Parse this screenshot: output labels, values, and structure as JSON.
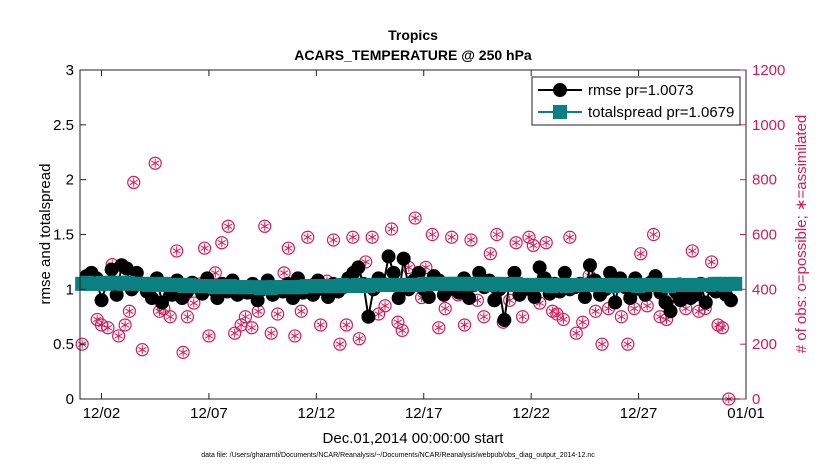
{
  "chart_data": {
    "type": "line",
    "title": "Tropics",
    "subtitle": "ACARS_TEMPERATURE @ 250 hPa",
    "xlabel": "Dec.01,2014 00:00:00 start",
    "ylabel": "rmse and totalspread",
    "y2label": "# of obs: o=possible; ∗=assimilated",
    "x_tick_labels": [
      "12/02",
      "12/07",
      "12/12",
      "12/17",
      "12/22",
      "12/27",
      "01/01"
    ],
    "x_tick_days": [
      1,
      6,
      11,
      16,
      21,
      26,
      31
    ],
    "xlim": [
      0,
      31
    ],
    "ylim": [
      0,
      3
    ],
    "y_ticks": [
      "0",
      "0.5",
      "1",
      "1.5",
      "2",
      "2.5",
      "3"
    ],
    "y2lim": [
      0,
      1200
    ],
    "y2_ticks": [
      "0",
      "200",
      "400",
      "600",
      "800",
      "1000",
      "1200"
    ],
    "colors": {
      "rmse": "#000000",
      "totalspread": "#0a8080",
      "obs": "#d6185a"
    },
    "legend": [
      {
        "name": "rmse pr=1.0073"
      },
      {
        "name": "totalspread pr=1.0679"
      }
    ],
    "series": [
      {
        "name": "rmse",
        "values": [
          1.12,
          1.15,
          1.1,
          0.9,
          1.05,
          1.18,
          0.95,
          1.22,
          1.19,
          1.0,
          1.15,
          1.05,
          0.98,
          0.92,
          1.1,
          0.88,
          1.05,
          0.95,
          1.08,
          0.92,
          0.98,
          1.06,
          1.02,
          0.96,
          1.1,
          1.0,
          0.92,
          1.05,
          0.98,
          1.08,
          0.95,
          1.02,
          0.97,
          1.05,
          0.9,
          1.0,
          1.08,
          0.95,
          1.02,
          0.98,
          1.05,
          0.92,
          1.1,
          0.97,
          1.03,
          0.95,
          1.08,
          1.0,
          0.93,
          1.05,
          0.98,
          1.02,
          1.1,
          1.15,
          1.2,
          1.05,
          0.75,
          1.0,
          1.1,
          1.05,
          1.3,
          1.15,
          0.92,
          1.28,
          1.0,
          1.08,
          1.15,
          1.0,
          0.93,
          1.12,
          1.08,
          0.95,
          1.0,
          1.05,
          0.97,
          1.1,
          0.92,
          1.04,
          1.15,
          1.02,
          1.08,
          0.9,
          1.0,
          0.72,
          1.05,
          1.15,
          0.95,
          1.0,
          1.02,
          0.93,
          1.2,
          1.1,
          0.96,
          1.05,
          0.98,
          1.15,
          1.0,
          1.02,
          1.05,
          0.93,
          1.22,
          1.08,
          0.95,
          1.0,
          1.15,
          0.88,
          1.1,
          1.02,
          0.92,
          1.1,
          1.0,
          0.95,
          1.06,
          1.12,
          0.97,
          0.88,
          0.8,
          0.98,
          0.9,
          1.0,
          0.92,
          0.95,
          1.05,
          0.88,
          1.02,
          0.98,
          1.05,
          0.95,
          0.9
        ]
      },
      {
        "name": "totalspread",
        "values": [
          1.05,
          1.06,
          1.05,
          1.05,
          1.06,
          1.05,
          1.06,
          1.06,
          1.05,
          1.06,
          1.05,
          1.05,
          1.05,
          1.04,
          1.05,
          1.04,
          1.05,
          1.04,
          1.04,
          1.04,
          1.03,
          1.04,
          1.03,
          1.03,
          1.03,
          1.03,
          1.02,
          1.03,
          1.02,
          1.03,
          1.02,
          1.02,
          1.02,
          1.02,
          1.02,
          1.01,
          1.02,
          1.01,
          1.02,
          1.02,
          1.02,
          1.02,
          1.02,
          1.02,
          1.03,
          1.03,
          1.03,
          1.03,
          1.03,
          1.03,
          1.03,
          1.04,
          1.03,
          1.03,
          1.04,
          1.03,
          1.03,
          1.04,
          1.04,
          1.04,
          1.04,
          1.04,
          1.04,
          1.04,
          1.04,
          1.04,
          1.04,
          1.05,
          1.05,
          1.05,
          1.05,
          1.05,
          1.05,
          1.05,
          1.05,
          1.05,
          1.05,
          1.05,
          1.05,
          1.05,
          1.04,
          1.05,
          1.05,
          1.04,
          1.04,
          1.05,
          1.04,
          1.04,
          1.04,
          1.04,
          1.04,
          1.04,
          1.03,
          1.04,
          1.04,
          1.03,
          1.04,
          1.04,
          1.04,
          1.04,
          1.04,
          1.04,
          1.04,
          1.04,
          1.03,
          1.04,
          1.04,
          1.04,
          1.04,
          1.03,
          1.04,
          1.04,
          1.04,
          1.04,
          1.04,
          1.03,
          1.04,
          1.04,
          1.04,
          1.04,
          1.04,
          1.04,
          1.04,
          1.04,
          1.05,
          1.05,
          1.04,
          1.05,
          1.05
        ]
      },
      {
        "name": "obs_possible",
        "points": [
          [
            0.1,
            200
          ],
          [
            0.5,
            460
          ],
          [
            0.8,
            290
          ],
          [
            1.0,
            270
          ],
          [
            1.3,
            260
          ],
          [
            1.5,
            490
          ],
          [
            1.8,
            230
          ],
          [
            2.1,
            270
          ],
          [
            2.3,
            320
          ],
          [
            2.5,
            790
          ],
          [
            2.7,
            420
          ],
          [
            2.9,
            180
          ],
          [
            3.2,
            400
          ],
          [
            3.5,
            860
          ],
          [
            3.7,
            320
          ],
          [
            3.9,
            330
          ],
          [
            4.2,
            300
          ],
          [
            4.5,
            540
          ],
          [
            4.8,
            170
          ],
          [
            5.0,
            300
          ],
          [
            5.3,
            350
          ],
          [
            5.6,
            420
          ],
          [
            5.8,
            550
          ],
          [
            6.0,
            230
          ],
          [
            6.3,
            460
          ],
          [
            6.6,
            570
          ],
          [
            6.9,
            630
          ],
          [
            7.2,
            240
          ],
          [
            7.5,
            270
          ],
          [
            7.7,
            300
          ],
          [
            8.0,
            260
          ],
          [
            8.3,
            320
          ],
          [
            8.6,
            630
          ],
          [
            8.9,
            240
          ],
          [
            9.2,
            310
          ],
          [
            9.5,
            460
          ],
          [
            9.7,
            550
          ],
          [
            10.0,
            230
          ],
          [
            10.3,
            320
          ],
          [
            10.6,
            590
          ],
          [
            10.9,
            420
          ],
          [
            11.2,
            270
          ],
          [
            11.5,
            430
          ],
          [
            11.8,
            580
          ],
          [
            12.1,
            200
          ],
          [
            12.4,
            270
          ],
          [
            12.7,
            590
          ],
          [
            13.0,
            220
          ],
          [
            13.3,
            500
          ],
          [
            13.6,
            590
          ],
          [
            13.9,
            310
          ],
          [
            14.2,
            340
          ],
          [
            14.5,
            620
          ],
          [
            14.8,
            280
          ],
          [
            15.0,
            250
          ],
          [
            15.3,
            480
          ],
          [
            15.6,
            660
          ],
          [
            15.9,
            370
          ],
          [
            16.1,
            480
          ],
          [
            16.4,
            600
          ],
          [
            16.7,
            260
          ],
          [
            17.0,
            330
          ],
          [
            17.3,
            590
          ],
          [
            17.6,
            380
          ],
          [
            17.9,
            270
          ],
          [
            18.2,
            580
          ],
          [
            18.5,
            360
          ],
          [
            18.8,
            300
          ],
          [
            19.1,
            530
          ],
          [
            19.4,
            600
          ],
          [
            19.7,
            280
          ],
          [
            20.0,
            360
          ],
          [
            20.3,
            570
          ],
          [
            20.6,
            300
          ],
          [
            20.9,
            590
          ],
          [
            21.1,
            560
          ],
          [
            21.4,
            350
          ],
          [
            21.7,
            570
          ],
          [
            22.0,
            320
          ],
          [
            22.2,
            310
          ],
          [
            22.5,
            290
          ],
          [
            22.8,
            590
          ],
          [
            23.1,
            240
          ],
          [
            23.4,
            280
          ],
          [
            23.7,
            450
          ],
          [
            24.0,
            320
          ],
          [
            24.3,
            200
          ],
          [
            24.6,
            330
          ],
          [
            24.9,
            440
          ],
          [
            25.2,
            300
          ],
          [
            25.5,
            200
          ],
          [
            25.8,
            330
          ],
          [
            26.1,
            530
          ],
          [
            26.4,
            340
          ],
          [
            26.7,
            600
          ],
          [
            27.0,
            300
          ],
          [
            27.3,
            290
          ],
          [
            27.6,
            390
          ],
          [
            27.9,
            420
          ],
          [
            28.2,
            330
          ],
          [
            28.5,
            540
          ],
          [
            28.8,
            320
          ],
          [
            29.1,
            330
          ],
          [
            29.4,
            500
          ],
          [
            29.7,
            270
          ],
          [
            29.9,
            260
          ],
          [
            30.2,
            0
          ]
        ]
      }
    ]
  },
  "footer": "data file: /Users/gharamti/Documents/NCAR/Reanalysis/~/Documents/NCAR/Reanalysis/webpub/obs_diag_output_2014-12.nc"
}
